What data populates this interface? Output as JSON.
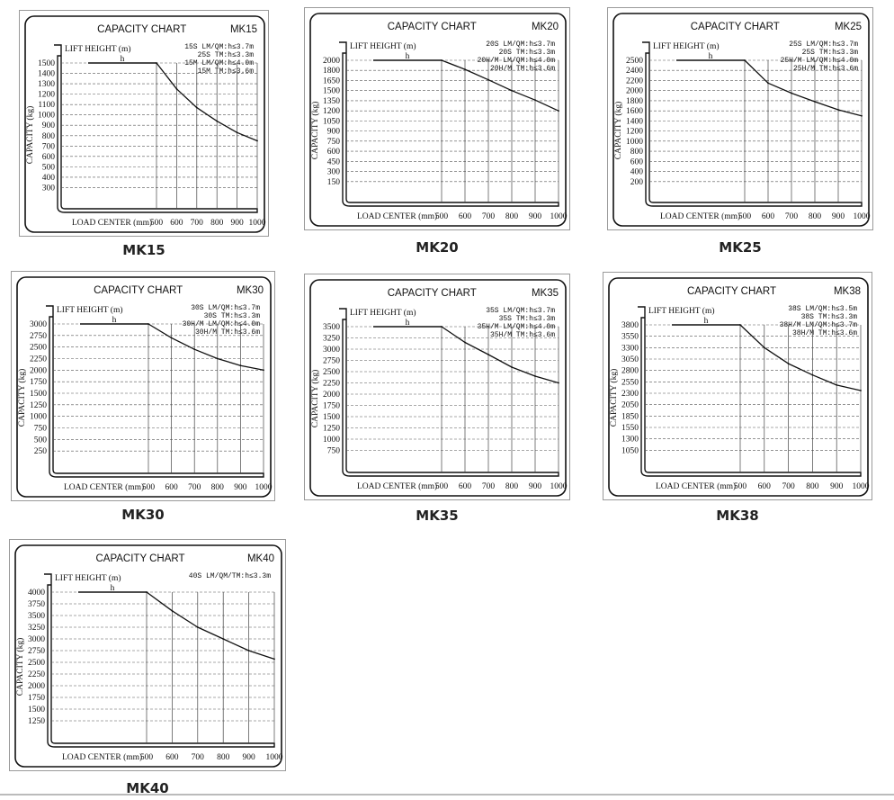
{
  "charts": [
    {
      "model": "MK15",
      "caption": "MK15",
      "title": "CAPACITY CHART",
      "lift_label": "LIFT HEIGHT (m)",
      "h_label": "h",
      "ylabel": "CAPACITY (kg)",
      "xlabel": "LOAD CENTER (mm)",
      "notes": [
        "15S LM/QM:h≤3.7m",
        "25S TM:h≤3.3m",
        "15M LM/QM:h≤4.0m",
        "15M TM:h≤3.6m"
      ],
      "yticks": [
        "1500",
        "1400",
        "1300",
        "1200",
        "1100",
        "1000",
        "900",
        "800",
        "700",
        "600",
        "500",
        "400",
        "300"
      ],
      "xticks": [
        "500",
        "600",
        "700",
        "800",
        "900",
        "1000"
      ]
    },
    {
      "model": "MK20",
      "caption": "MK20",
      "title": "CAPACITY CHART",
      "lift_label": "LIFT HEIGHT (m)",
      "h_label": "h",
      "ylabel": "CAPACITY (kg)",
      "xlabel": "LOAD CENTER (mm)",
      "notes": [
        "20S LM/QM:h≤3.7m",
        "20S TM:h≤3.3m",
        "20H/M LM/QM:h≤4.0m",
        "20H/M TM:h≤3.6m"
      ],
      "yticks": [
        "2000",
        "1800",
        "1650",
        "1500",
        "1350",
        "1200",
        "1050",
        "900",
        "750",
        "600",
        "450",
        "300",
        "150"
      ],
      "xticks": [
        "500",
        "600",
        "700",
        "800",
        "900",
        "1000"
      ]
    },
    {
      "model": "MK25",
      "caption": "MK25",
      "title": "CAPACITY CHART",
      "lift_label": "LIFT HEIGHT (m)",
      "h_label": "h",
      "ylabel": "CAPACITY (kg)",
      "xlabel": "LOAD CENTER (mm)",
      "notes": [
        "25S LM/QM:h≤3.7m",
        "25S TM:h≤3.3m",
        "25H/M LM/QM:h≤4.0m",
        "25H/M TM:h≤3.6m"
      ],
      "yticks": [
        "2500",
        "2400",
        "2200",
        "2000",
        "1800",
        "1600",
        "1400",
        "1200",
        "1000",
        "800",
        "600",
        "400",
        "200"
      ],
      "xticks": [
        "500",
        "600",
        "700",
        "800",
        "900",
        "1000"
      ]
    },
    {
      "model": "MK30",
      "caption": "MK30",
      "title": "CAPACITY CHART",
      "lift_label": "LIFT HEIGHT (m)",
      "h_label": "h",
      "ylabel": "CAPACITY (kg)",
      "xlabel": "LOAD CENTER (mm)",
      "notes": [
        "30S LM/QM:h≤3.7m",
        "30S TM:h≤3.3m",
        "30H/M LM/QM:h≤4.0m",
        "30H/M TM:h≤3.6m"
      ],
      "yticks": [
        "3000",
        "2750",
        "2500",
        "2250",
        "2000",
        "1750",
        "1500",
        "1250",
        "1000",
        "750",
        "500",
        "250"
      ],
      "xticks": [
        "500",
        "600",
        "700",
        "800",
        "900",
        "1000"
      ]
    },
    {
      "model": "MK35",
      "caption": "MK35",
      "title": "CAPACITY CHART",
      "lift_label": "LIFT HEIGHT (m)",
      "h_label": "h",
      "ylabel": "CAPACITY (kg)",
      "xlabel": "LOAD CENTER (mm)",
      "notes": [
        "35S LM/QM:h≤3.7m",
        "35S TM:h≤3.3m",
        "35H/M LM/QM:h≤4.0m",
        "35H/M TM:h≤3.6m"
      ],
      "yticks": [
        "3500",
        "3250",
        "3000",
        "2750",
        "2500",
        "2250",
        "2000",
        "1750",
        "1500",
        "1250",
        "1000",
        "750"
      ],
      "xticks": [
        "500",
        "600",
        "700",
        "800",
        "900",
        "1000"
      ]
    },
    {
      "model": "MK38",
      "caption": "MK38",
      "title": "CAPACITY CHART",
      "lift_label": "LIFT HEIGHT (m)",
      "h_label": "h",
      "ylabel": "CAPACITY (kg)",
      "xlabel": "LOAD CENTER (mm)",
      "notes": [
        "38S LM/QM:h≤3.5m",
        "38S TM:h≤3.3m",
        "38H/M LM/QM:h≤3.7m",
        "38H/M TM:h≤3.6m"
      ],
      "yticks": [
        "3800",
        "3550",
        "3300",
        "3050",
        "2800",
        "2550",
        "2300",
        "2050",
        "1850",
        "1550",
        "1300",
        "1050"
      ],
      "xticks": [
        "500",
        "600",
        "700",
        "800",
        "900",
        "1000"
      ]
    },
    {
      "model": "MK40",
      "caption": "MK40",
      "title": "CAPACITY CHART",
      "lift_label": "LIFT HEIGHT (m)",
      "h_label": "h",
      "ylabel": "CAPACITY (kg)",
      "xlabel": "LOAD CENTER (mm)",
      "notes": [
        "40S LM/QM/TM:h≤3.3m"
      ],
      "yticks": [
        "4000",
        "3750",
        "3500",
        "3250",
        "3000",
        "2750",
        "2500",
        "2250",
        "2000",
        "1750",
        "1500",
        "1250"
      ],
      "xticks": [
        "500",
        "600",
        "700",
        "800",
        "900",
        "1000"
      ]
    }
  ],
  "chart_data": [
    {
      "type": "line",
      "title": "CAPACITY CHART MK15",
      "xlabel": "LOAD CENTER (mm)",
      "ylabel": "CAPACITY (kg)",
      "xlim": [
        500,
        1000
      ],
      "ylim": [
        300,
        1500
      ],
      "x": [
        500,
        600,
        700,
        800,
        900,
        1000
      ],
      "series": [
        {
          "values": [
            1500,
            1250,
            1070,
            940,
            830,
            750
          ]
        }
      ]
    },
    {
      "type": "line",
      "title": "CAPACITY CHART MK20",
      "xlabel": "LOAD CENTER (mm)",
      "ylabel": "CAPACITY (kg)",
      "xlim": [
        500,
        1000
      ],
      "ylim": [
        150,
        2000
      ],
      "x": [
        500,
        600,
        700,
        800,
        900,
        1000
      ],
      "series": [
        {
          "values": [
            2000,
            1820,
            1660,
            1500,
            1360,
            1200
          ]
        }
      ]
    },
    {
      "type": "line",
      "title": "CAPACITY CHART MK25",
      "xlabel": "LOAD CENTER (mm)",
      "ylabel": "CAPACITY (kg)",
      "xlim": [
        500,
        1000
      ],
      "ylim": [
        200,
        2500
      ],
      "x": [
        500,
        600,
        700,
        800,
        900,
        1000
      ],
      "series": [
        {
          "values": [
            2500,
            2150,
            1950,
            1780,
            1620,
            1500
          ]
        }
      ]
    },
    {
      "type": "line",
      "title": "CAPACITY CHART MK30",
      "xlabel": "LOAD CENTER (mm)",
      "ylabel": "CAPACITY (kg)",
      "xlim": [
        500,
        1000
      ],
      "ylim": [
        250,
        3000
      ],
      "x": [
        500,
        600,
        700,
        800,
        900,
        1000
      ],
      "series": [
        {
          "values": [
            3000,
            2700,
            2450,
            2250,
            2100,
            2000
          ]
        }
      ]
    },
    {
      "type": "line",
      "title": "CAPACITY CHART MK35",
      "xlabel": "LOAD CENTER (mm)",
      "ylabel": "CAPACITY (kg)",
      "xlim": [
        500,
        1000
      ],
      "ylim": [
        750,
        3500
      ],
      "x": [
        500,
        600,
        700,
        800,
        900,
        1000
      ],
      "series": [
        {
          "values": [
            3500,
            3150,
            2880,
            2600,
            2400,
            2250
          ]
        }
      ]
    },
    {
      "type": "line",
      "title": "CAPACITY CHART MK38",
      "xlabel": "LOAD CENTER (mm)",
      "ylabel": "CAPACITY (kg)",
      "xlim": [
        500,
        1000
      ],
      "ylim": [
        1050,
        3800
      ],
      "x": [
        500,
        600,
        700,
        800,
        900,
        1000
      ],
      "series": [
        {
          "values": [
            3800,
            3300,
            2950,
            2700,
            2480,
            2360
          ]
        }
      ]
    },
    {
      "type": "line",
      "title": "CAPACITY CHART MK40",
      "xlabel": "LOAD CENTER (mm)",
      "ylabel": "CAPACITY (kg)",
      "xlim": [
        500,
        1000
      ],
      "ylim": [
        1250,
        4000
      ],
      "x": [
        500,
        600,
        700,
        800,
        900,
        1000
      ],
      "series": [
        {
          "values": [
            4000,
            3600,
            3250,
            3000,
            2750,
            2570
          ]
        }
      ]
    }
  ]
}
